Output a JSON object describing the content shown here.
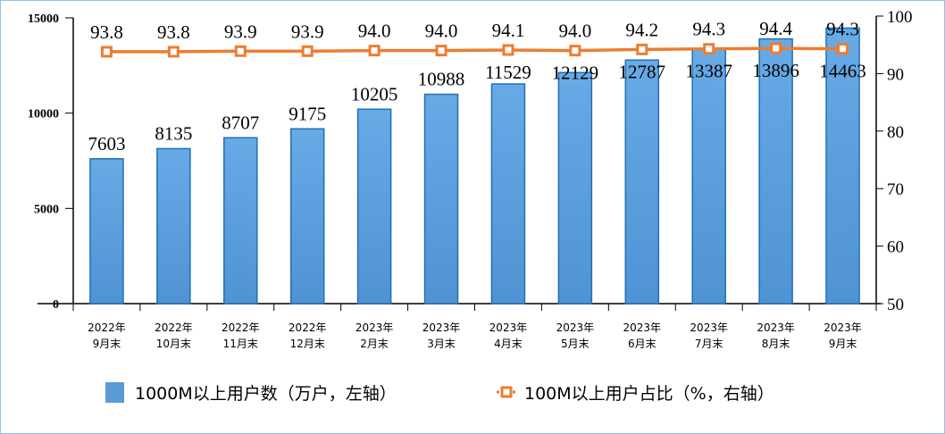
{
  "chart_data": {
    "type": "bar+line",
    "categories": [
      [
        "2022年",
        "9月末"
      ],
      [
        "2022年",
        "10月末"
      ],
      [
        "2022年",
        "11月末"
      ],
      [
        "2022年",
        "12月末"
      ],
      [
        "2023年",
        "2月末"
      ],
      [
        "2023年",
        "3月末"
      ],
      [
        "2023年",
        "4月末"
      ],
      [
        "2023年",
        "5月末"
      ],
      [
        "2023年",
        "6月末"
      ],
      [
        "2023年",
        "7月末"
      ],
      [
        "2023年",
        "8月末"
      ],
      [
        "2023年",
        "9月末"
      ]
    ],
    "series": [
      {
        "name": "1000M以上用户数（万户，左轴）",
        "type": "bar",
        "axis": "left",
        "color": "#5b9bd5",
        "values": [
          7603,
          8135,
          8707,
          9175,
          10205,
          10988,
          11529,
          12129,
          12787,
          13387,
          13896,
          14463
        ]
      },
      {
        "name": "100M以上用户占比（%，右轴）",
        "type": "line",
        "axis": "right",
        "color": "#ed7d31",
        "values": [
          93.8,
          93.8,
          93.9,
          93.9,
          94.0,
          94.0,
          94.1,
          94.0,
          94.2,
          94.3,
          94.4,
          94.3
        ]
      }
    ],
    "left_axis": {
      "range": [
        0,
        15000
      ],
      "ticks": [
        0,
        5000,
        10000,
        15000
      ]
    },
    "right_axis": {
      "range": [
        50,
        100
      ],
      "ticks": [
        50,
        60,
        70,
        80,
        90,
        100
      ]
    },
    "line_label_format": [
      "93.8",
      "93.8",
      "93.9",
      "93.9",
      "94.0",
      "94.0",
      "94.1",
      "94.0",
      "94.2",
      "94.3",
      "94.4",
      "94.3"
    ],
    "legend": "bottom",
    "grid": false
  }
}
